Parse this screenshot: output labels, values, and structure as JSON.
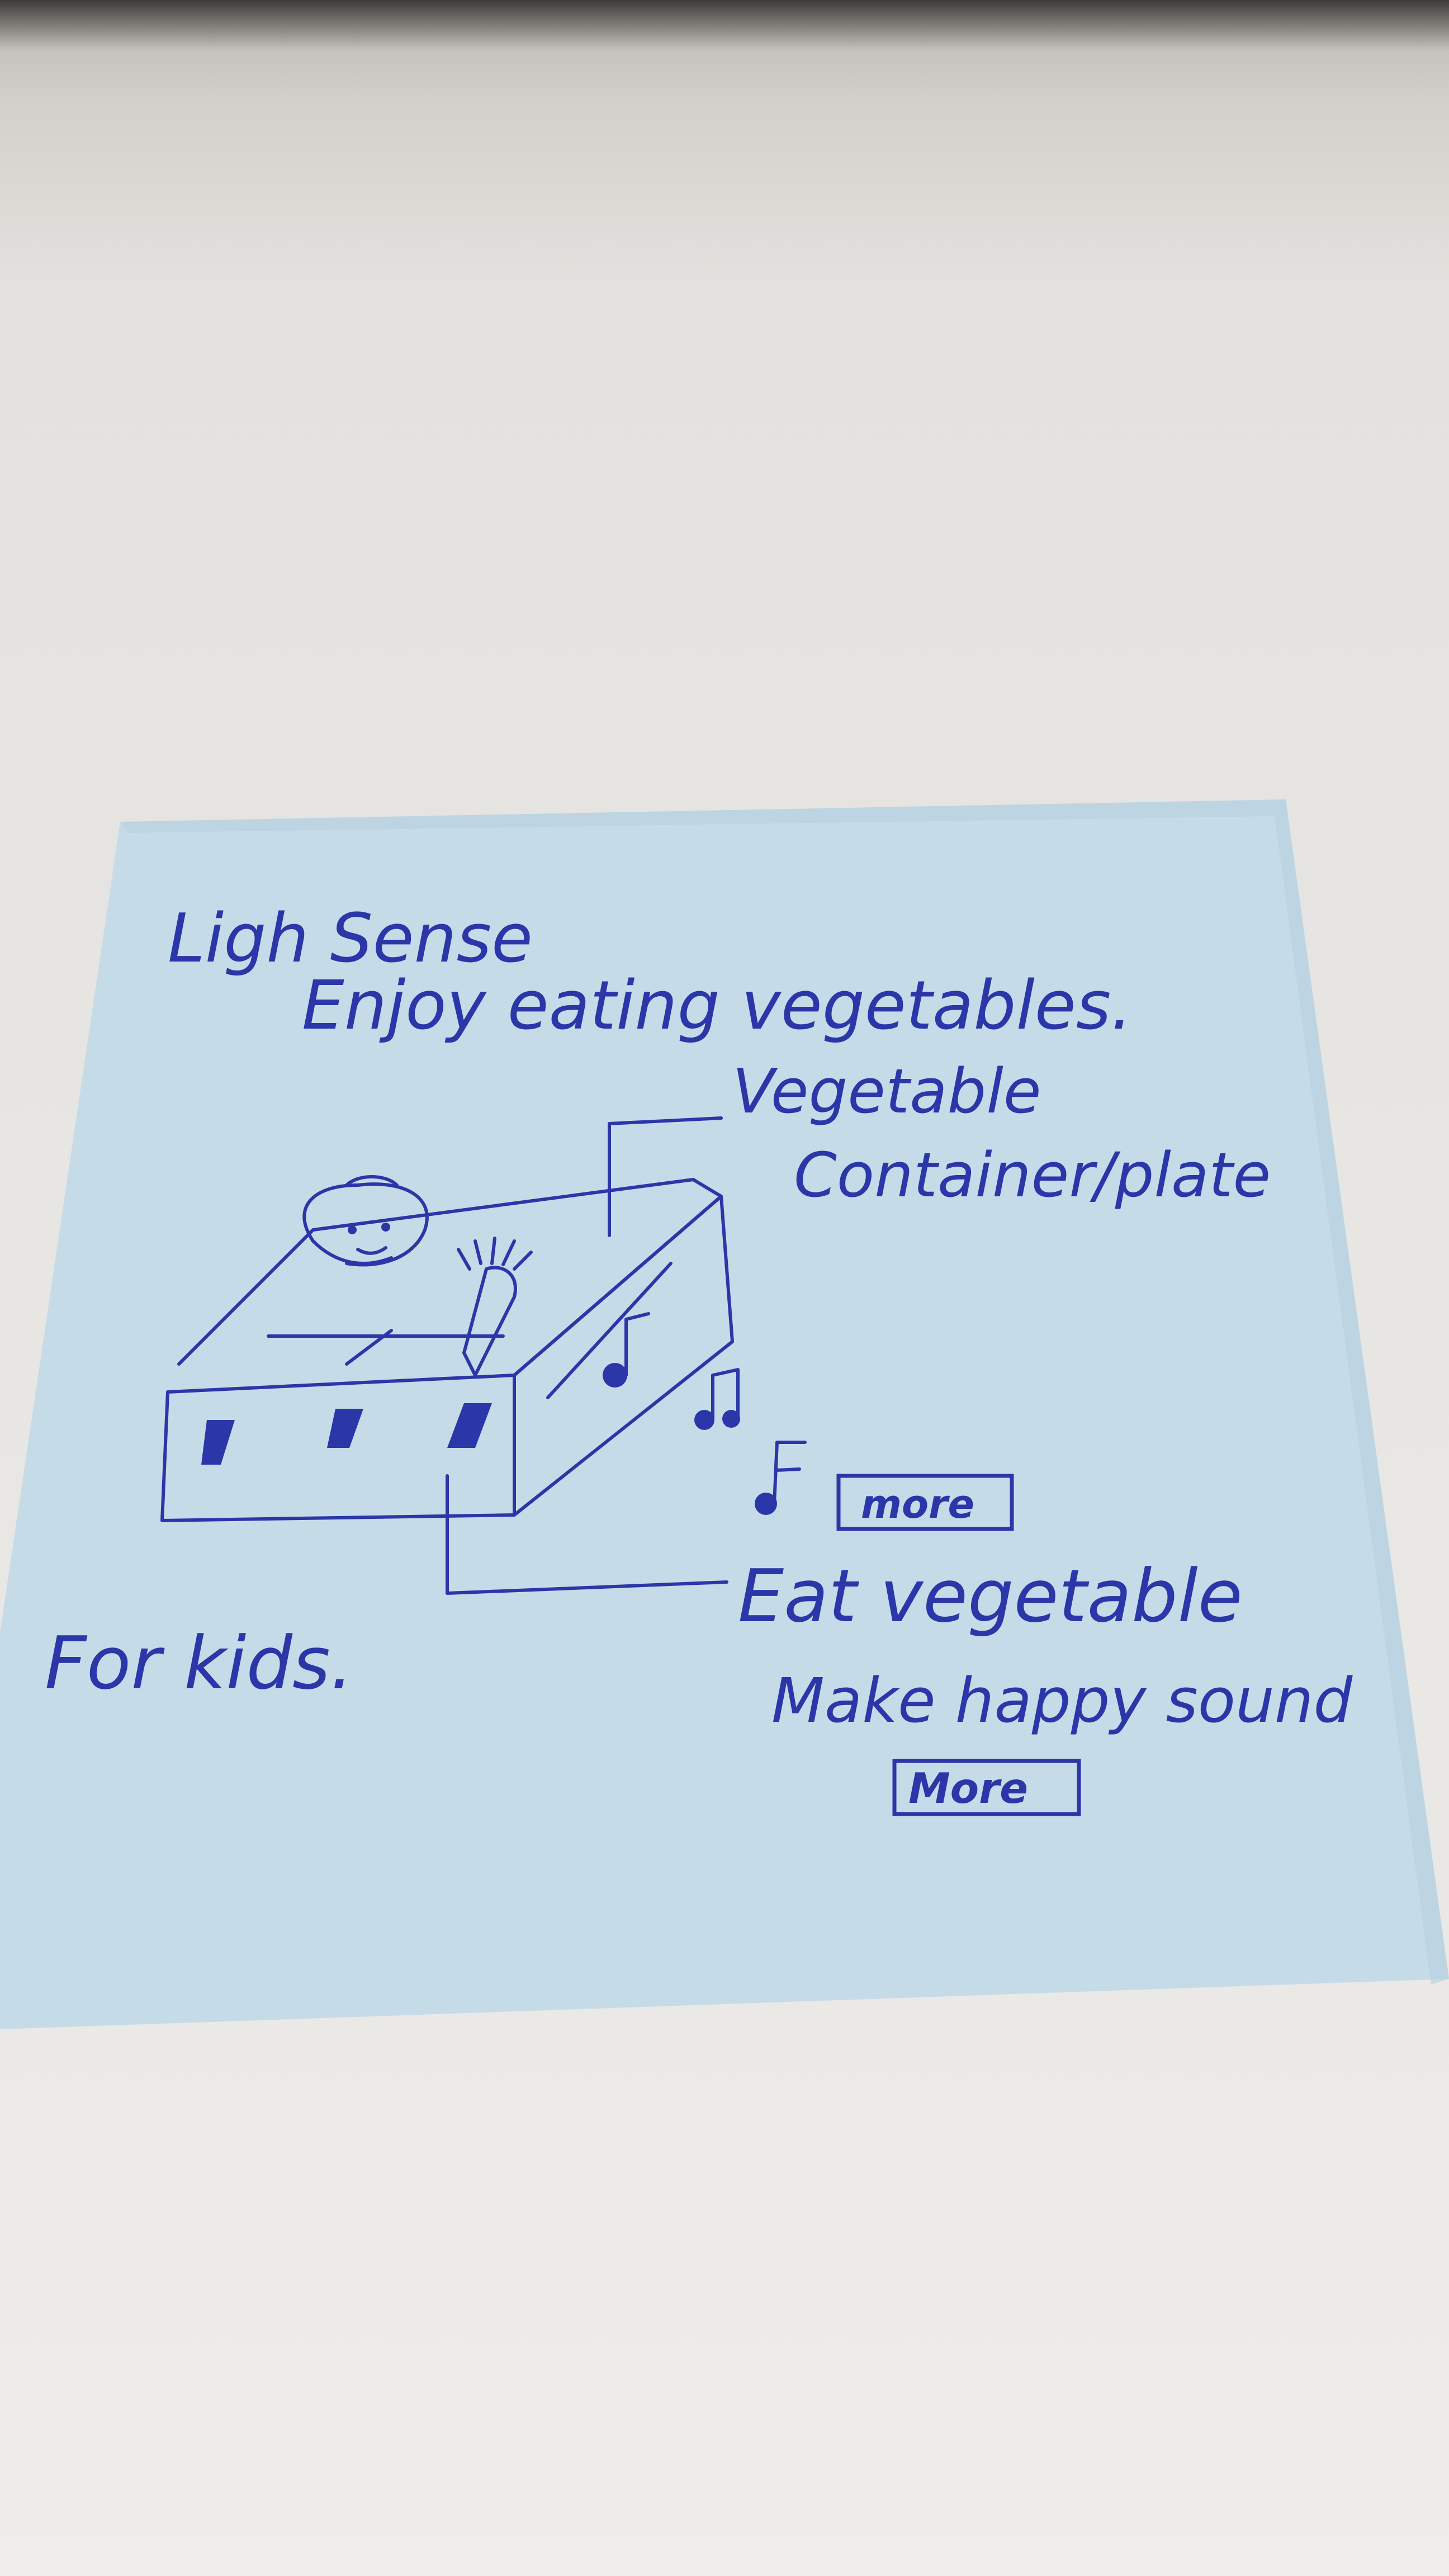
{
  "note": {
    "title": "Ligh Sense",
    "subtitle": "Enjoy eating vegetables.",
    "label_top_line1": "Vegetable",
    "label_top_line2": "Container/plate",
    "label_more_1": "more",
    "label_bottom_line1": "Eat vegetable",
    "label_bottom_line2": "Make happy sound",
    "label_more_2": "More",
    "audience": "For kids.",
    "paper_color": "#c5dbe8",
    "ink_color": "#2b36a8"
  },
  "icons": {
    "notes": "music-note-icon",
    "face": "child-face-icon",
    "carrot": "carrot-icon"
  }
}
